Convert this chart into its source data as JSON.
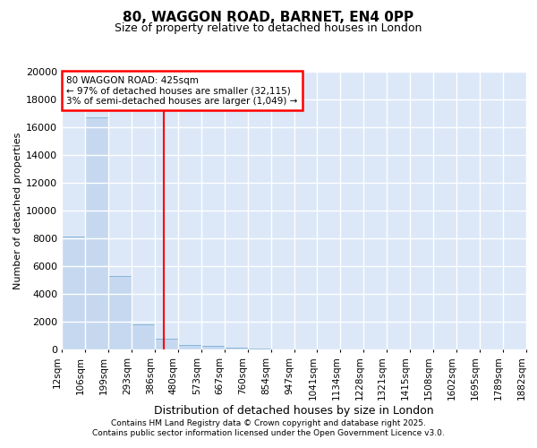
{
  "title": "80, WAGGON ROAD, BARNET, EN4 0PP",
  "subtitle": "Size of property relative to detached houses in London",
  "xlabel": "Distribution of detached houses by size in London",
  "ylabel": "Number of detached properties",
  "bar_values": [
    8100,
    16700,
    5300,
    1800,
    800,
    350,
    250,
    150,
    50,
    20,
    10,
    5,
    3,
    2,
    1,
    1,
    0,
    0,
    0,
    0
  ],
  "bar_color": "#c5d8f0",
  "bar_edge_color": "#7aafd4",
  "categories": [
    "12sqm",
    "106sqm",
    "199sqm",
    "293sqm",
    "386sqm",
    "480sqm",
    "573sqm",
    "667sqm",
    "760sqm",
    "854sqm",
    "947sqm",
    "1041sqm",
    "1134sqm",
    "1228sqm",
    "1321sqm",
    "1415sqm",
    "1508sqm",
    "1602sqm",
    "1695sqm",
    "1789sqm",
    "1882sqm"
  ],
  "ylim": [
    0,
    20000
  ],
  "yticks": [
    0,
    2000,
    4000,
    6000,
    8000,
    10000,
    12000,
    14000,
    16000,
    18000,
    20000
  ],
  "property_line_x": 4.4,
  "annotation_title": "80 WAGGON ROAD: 425sqm",
  "annotation_line1": "← 97% of detached houses are smaller (32,115)",
  "annotation_line2": "3% of semi-detached houses are larger (1,049) →",
  "annotation_box_color": "#ff0000",
  "footer_line1": "Contains HM Land Registry data © Crown copyright and database right 2025.",
  "footer_line2": "Contains public sector information licensed under the Open Government Licence v3.0.",
  "plot_bg_color": "#dce8f8",
  "fig_bg_color": "#ffffff",
  "grid_color": "#ffffff",
  "title_fontsize": 11,
  "subtitle_fontsize": 9,
  "tick_label_fontsize": 7.5,
  "ylabel_fontsize": 8,
  "xlabel_fontsize": 9
}
